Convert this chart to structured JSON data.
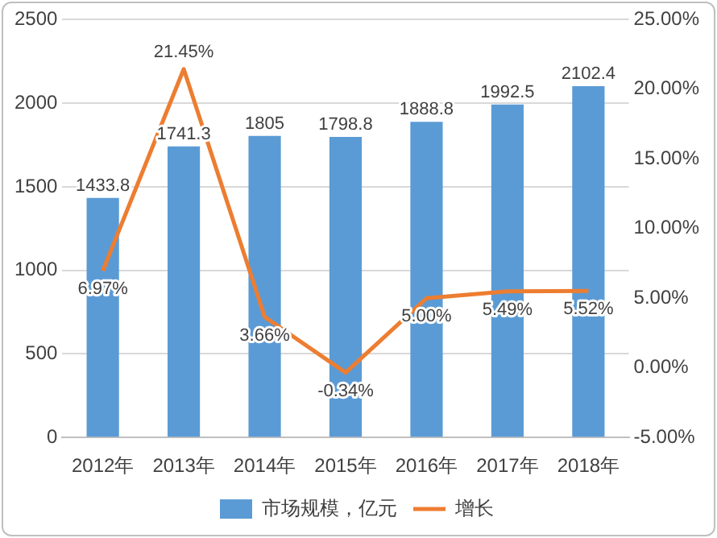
{
  "chart_data": {
    "type": "bar",
    "categories": [
      "2012年",
      "2013年",
      "2014年",
      "2015年",
      "2016年",
      "2017年",
      "2018年"
    ],
    "series": [
      {
        "name": "市场规模，亿元",
        "color": "#5b9bd5",
        "values": [
          1433.8,
          1741.3,
          1805,
          1798.8,
          1888.8,
          1992.5,
          2102.4
        ],
        "value_labels": [
          "1433.8",
          "1741.3",
          "1805",
          "1798.8",
          "1888.8",
          "1992.5",
          "2102.4"
        ]
      },
      {
        "name": "增长",
        "type": "line",
        "axis": "y2",
        "color": "#ed7d31",
        "values": [
          6.97,
          21.45,
          3.66,
          -0.34,
          5.0,
          5.49,
          5.52
        ],
        "value_labels": [
          "6.97%",
          "21.45%",
          "3.66%",
          "-0.34%",
          "5.00%",
          "5.49%",
          "5.52%"
        ]
      }
    ],
    "ylim": [
      0,
      2500
    ],
    "yticks": [
      0,
      500,
      1000,
      1500,
      2000,
      2500
    ],
    "y2lim": [
      -5,
      25
    ],
    "y2ticks": [
      {
        "value": -5,
        "label": "-5.00%"
      },
      {
        "value": 0,
        "label": "0.00%"
      },
      {
        "value": 5,
        "label": "5.00%"
      },
      {
        "value": 10,
        "label": "10.00%"
      },
      {
        "value": 15,
        "label": "15.00%"
      },
      {
        "value": 20,
        "label": "20.00%"
      },
      {
        "value": 25,
        "label": "25.00%"
      }
    ],
    "grid": "y",
    "legend": "bottom",
    "marker": "none",
    "line_style": "solid"
  }
}
